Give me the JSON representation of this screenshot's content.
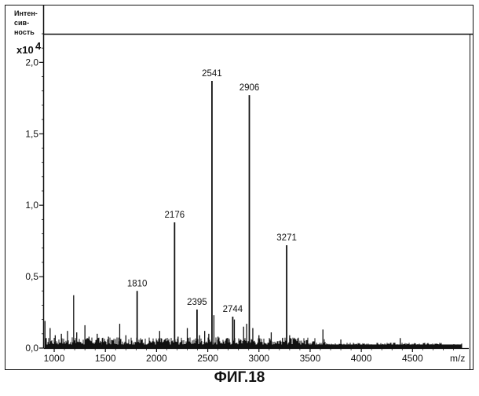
{
  "chart_data": {
    "type": "bar",
    "title": "",
    "xlabel": "m/z",
    "ylabel": [
      "Интен-",
      "сив-",
      "ность"
    ],
    "y_multiplier": "x10",
    "y_multiplier_exp": "4",
    "xlim": [
      900,
      5050
    ],
    "ylim": [
      0,
      2.2
    ],
    "x_ticks": [
      1000,
      1500,
      2000,
      2500,
      3000,
      3500,
      4000,
      4500
    ],
    "x_tick_labels": [
      "1000",
      "1500",
      "2000",
      "2500",
      "3000",
      "3500",
      "4000",
      "4500"
    ],
    "y_ticks": [
      0,
      0.5,
      1.0,
      1.5,
      2.0
    ],
    "y_tick_labels": [
      "0,0",
      "0,5",
      "1,0",
      "1,5",
      "2,0"
    ],
    "grid": false,
    "labeled_peaks": [
      {
        "mz": 1810,
        "intensity": 0.4,
        "label": "1810"
      },
      {
        "mz": 2176,
        "intensity": 0.88,
        "label": "2176"
      },
      {
        "mz": 2395,
        "intensity": 0.27,
        "label": "2395"
      },
      {
        "mz": 2541,
        "intensity": 1.87,
        "label": "2541"
      },
      {
        "mz": 2744,
        "intensity": 0.22,
        "label": "2744"
      },
      {
        "mz": 2906,
        "intensity": 1.77,
        "label": "2906"
      },
      {
        "mz": 3271,
        "intensity": 0.72,
        "label": "3271"
      }
    ],
    "minor_peaks": [
      {
        "mz": 910,
        "intensity": 0.19
      },
      {
        "mz": 960,
        "intensity": 0.14
      },
      {
        "mz": 1010,
        "intensity": 0.09
      },
      {
        "mz": 1070,
        "intensity": 0.1
      },
      {
        "mz": 1130,
        "intensity": 0.12
      },
      {
        "mz": 1190,
        "intensity": 0.37
      },
      {
        "mz": 1220,
        "intensity": 0.11
      },
      {
        "mz": 1300,
        "intensity": 0.16
      },
      {
        "mz": 1340,
        "intensity": 0.08
      },
      {
        "mz": 1420,
        "intensity": 0.1
      },
      {
        "mz": 1470,
        "intensity": 0.07
      },
      {
        "mz": 1530,
        "intensity": 0.08
      },
      {
        "mz": 1640,
        "intensity": 0.17
      },
      {
        "mz": 1700,
        "intensity": 0.09
      },
      {
        "mz": 1860,
        "intensity": 0.06
      },
      {
        "mz": 2030,
        "intensity": 0.12
      },
      {
        "mz": 2210,
        "intensity": 0.08
      },
      {
        "mz": 2300,
        "intensity": 0.14
      },
      {
        "mz": 2420,
        "intensity": 0.09
      },
      {
        "mz": 2470,
        "intensity": 0.12
      },
      {
        "mz": 2510,
        "intensity": 0.1
      },
      {
        "mz": 2560,
        "intensity": 0.23
      },
      {
        "mz": 2600,
        "intensity": 0.08
      },
      {
        "mz": 2690,
        "intensity": 0.07
      },
      {
        "mz": 2760,
        "intensity": 0.2
      },
      {
        "mz": 2850,
        "intensity": 0.15
      },
      {
        "mz": 2880,
        "intensity": 0.17
      },
      {
        "mz": 2940,
        "intensity": 0.14
      },
      {
        "mz": 3000,
        "intensity": 0.09
      },
      {
        "mz": 3120,
        "intensity": 0.11
      },
      {
        "mz": 3230,
        "intensity": 0.07
      },
      {
        "mz": 3300,
        "intensity": 0.09
      },
      {
        "mz": 3625,
        "intensity": 0.13
      },
      {
        "mz": 3800,
        "intensity": 0.06
      },
      {
        "mz": 4380,
        "intensity": 0.07
      }
    ],
    "noise_baseline": 0.06,
    "noise_cutoff_mz": 3650,
    "noise_tail_level": 0.03
  },
  "figure_caption": "ФИГ.18",
  "colors": {
    "ink": "#111111",
    "background": "#ffffff"
  }
}
